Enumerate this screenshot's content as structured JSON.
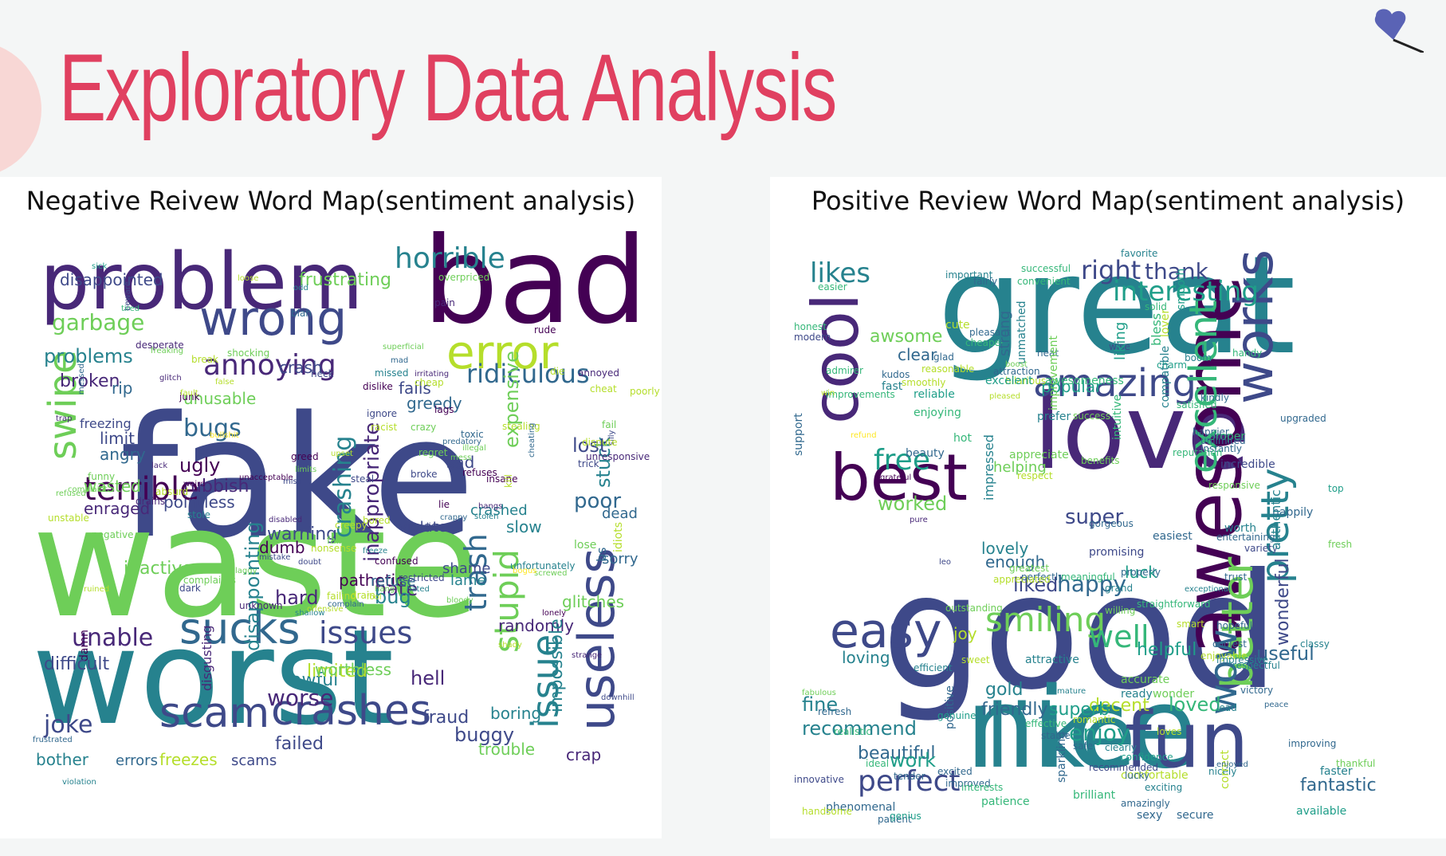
{
  "page": {
    "title": "Exploratory Data Analysis"
  },
  "panels": [
    {
      "title": "Negative Reivew Word Map(sentiment analysis)",
      "words": [
        "fake",
        "waste",
        "worst",
        "bad",
        "problem",
        "error",
        "wrong",
        "sucks",
        "scam",
        "crashes",
        "useless",
        "swipe",
        "terrible",
        "annoying",
        "horrible",
        "garbage",
        "issue",
        "issues",
        "stupid",
        "trash",
        "ridiculous",
        "problems",
        "broken",
        "unable",
        "bugs",
        "crashing",
        "joke",
        "poor",
        "stuck",
        "worse",
        "buggy",
        "hell",
        "failed",
        "awful",
        "disappointed",
        "frustrating",
        "lost",
        "limited",
        "pathetic",
        "hate",
        "inappropriate",
        "disappointing",
        "hard",
        "bug",
        "glitches",
        "refuse",
        "randomly",
        "impossible",
        "expensive",
        "crashed",
        "ugly",
        "rubbish",
        "pointless",
        "enraged",
        "wasted",
        "limit",
        "angry",
        "freezing",
        "rip",
        "unusable",
        "crash",
        "fails",
        "greedy",
        "warning",
        "dumb",
        "inactive",
        "damn",
        "difficult",
        "worthless",
        "disgusting",
        "fraud",
        "boring",
        "trouble",
        "crap",
        "freezes",
        "scams",
        "errors",
        "bother",
        "slow",
        "sad",
        "lame",
        "sorry",
        "dead",
        "violate",
        "lose",
        "shame",
        "bs",
        "fail",
        "blah",
        "pain",
        "rude",
        "overpriced",
        "odd",
        "loose",
        "beware",
        "superficial",
        "mad",
        "break",
        "desperate",
        "shocking",
        "glitch",
        "junk",
        "missed",
        "heck",
        "die",
        "annoyed",
        "cheap",
        "poorly",
        "irritating",
        "lags",
        "ignore",
        "racist",
        "dislike",
        "crazy",
        "cheat",
        "stealing",
        "toxic",
        "illegal",
        "greed",
        "limits",
        "breaking",
        "miss",
        "lack",
        "false",
        "funny",
        "screwed",
        "messed",
        "trap",
        "weird",
        "silly",
        "complaint",
        "refused",
        "dispute",
        "unresponsive",
        "predatory",
        "mess",
        "broke",
        "regret",
        "steal",
        "insane",
        "refuses",
        "trick",
        "lie",
        "crappy",
        "idiots",
        "lies",
        "hangs",
        "stolen",
        "absurd",
        "drains",
        "stole",
        "negative",
        "unstable",
        "confused",
        "complaints",
        "drain",
        "unknown",
        "failure",
        "bored",
        "creepy",
        "nonsense",
        "restricted",
        "unfortunately",
        "fool",
        "failing",
        "dark",
        "laggy",
        "upset",
        "hang",
        "hated",
        "kill",
        "shallow",
        "cheating",
        "shady",
        "bloody",
        "ruined",
        "offensive",
        "freeze",
        "mistake",
        "bogus",
        "lonely",
        "strange",
        "downhill",
        "frustrated",
        "violation",
        "sick",
        "tired",
        "freaking",
        "fault",
        "bullshit",
        "unacceptable",
        "disabled",
        "doubt",
        "complain"
      ]
    },
    {
      "title": "Positive Review Word Map(sentiment analysis)",
      "words": [
        "good",
        "great",
        "nice",
        "love",
        "best",
        "like",
        "fun",
        "awesome",
        "easy",
        "cool",
        "works",
        "amazing",
        "excellent",
        "better",
        "pretty",
        "smiling",
        "well",
        "perfect",
        "free",
        "likes",
        "interesting",
        "right",
        "thank",
        "wow",
        "worked",
        "super",
        "useful",
        "wonderful",
        "loved",
        "fine",
        "recommend",
        "beautiful",
        "work",
        "fantastic",
        "enjoy",
        "decent",
        "friendly",
        "superb",
        "helpful",
        "happy",
        "liked",
        "gold",
        "joy",
        "luck",
        "lovely",
        "loving",
        "enough",
        "popular",
        "awsome",
        "clear",
        "hot",
        "cute",
        "helping",
        "support",
        "enjoying",
        "easier",
        "successful",
        "important",
        "favorite",
        "fairly",
        "convenient",
        "honest",
        "modern",
        "pleasant",
        "cheaper",
        "reasonable",
        "attraction",
        "hilarious",
        "unmatched",
        "intuitive",
        "lover",
        "instantly",
        "happier",
        "upgraded",
        "handy",
        "solid",
        "bless",
        "wise",
        "smooth",
        "liking",
        "boom",
        "fast",
        "reliable",
        "improvements",
        "admirer",
        "kudos",
        "smoothly",
        "glad",
        "strong",
        "neat",
        "boost",
        "excelent",
        "pleased",
        "prefer",
        "awesomeness",
        "charm",
        "satisfied",
        "compatible",
        "success",
        "improvement",
        "proper",
        "reputation",
        "kindly",
        "beauty",
        "appreciate",
        "impressed",
        "benefits",
        "respect",
        "responsive",
        "unlimited",
        "worth",
        "entertaining",
        "happily",
        "top",
        "variety",
        "gorgeous",
        "perfectly",
        "meaningful",
        "incredible",
        "promising",
        "authentic",
        "trust",
        "coolest",
        "enjoyable",
        "fresh",
        "classy",
        "greatest",
        "outstanding",
        "appreciated",
        "grand",
        "easiest",
        "straightforward",
        "exceptional",
        "properly",
        "smart",
        "peace",
        "hopeful",
        "impressive",
        "respectful",
        "willing",
        "refresh",
        "realistic",
        "positive",
        "efficient",
        "sweet",
        "accurate",
        "ready",
        "wonder",
        "attractive",
        "mature",
        "safe",
        "clearly",
        "confidence",
        "lead",
        "victory",
        "nicely",
        "correct",
        "improving",
        "loves",
        "stable",
        "romantic",
        "recommended",
        "sparkling",
        "excited",
        "ideal",
        "comfortable",
        "lucky",
        "faster",
        "exciting",
        "innovative",
        "tender",
        "improved",
        "patience",
        "brilliant",
        "amazingly",
        "phenomenal",
        "patient",
        "genius",
        "sexy",
        "secure",
        "available",
        "handsome",
        "effective",
        "genuine",
        "thankful",
        "interests",
        "fabulous",
        "enjoyed",
        "win",
        "refund",
        "grateful",
        "pure",
        "leo"
      ]
    }
  ],
  "colors": {
    "title": "#e04060",
    "accent_heart": "#5a63b5",
    "palette": [
      "#440154",
      "#482878",
      "#3e4989",
      "#31688e",
      "#26828e",
      "#1f9e89",
      "#35b779",
      "#6ece58",
      "#b5de2b",
      "#fde725"
    ]
  }
}
